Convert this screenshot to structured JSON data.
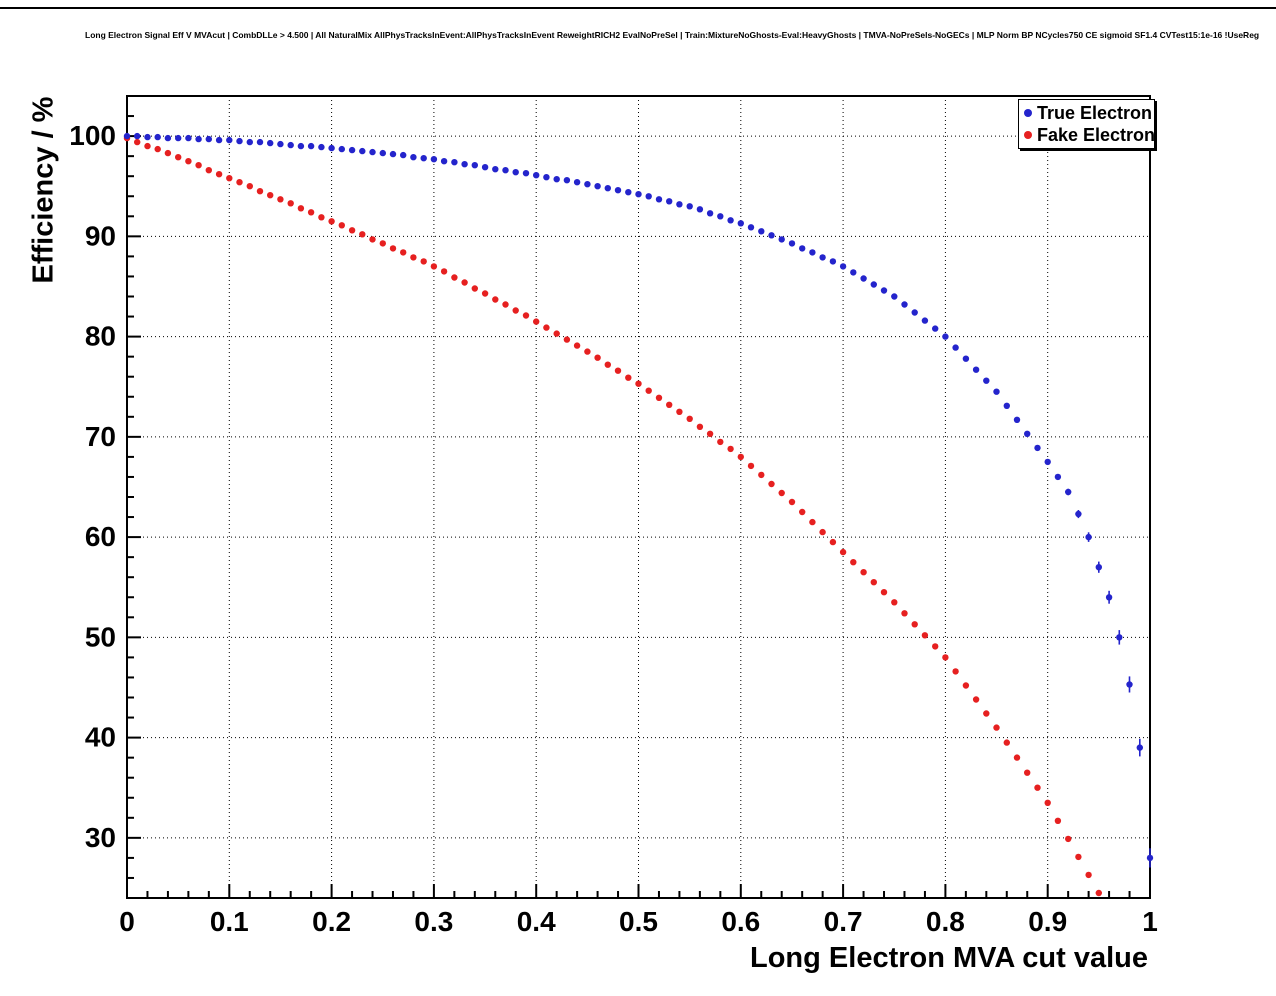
{
  "chart_data": {
    "type": "scatter",
    "title": "Long Electron Signal Eff V MVAcut | CombDLLe > 4.500 | All NaturalMix AllPhysTracksInEvent:AllPhysTracksInEvent ReweightRICH2 EvalNoPreSel | Train:MixtureNoGhosts-Eval:HeavyGhosts | TMVA-NoPreSels-NoGECs | MLP Norm BP NCycles750 CE sigmoid SF1.4 CVTest15:1e-16 !UseReg",
    "xlabel": "Long Electron MVA cut value",
    "ylabel": "Efficiency / %",
    "xlim": [
      0,
      1
    ],
    "ylim": [
      24,
      104
    ],
    "x_ticks": [
      0,
      0.1,
      0.2,
      0.3,
      0.4,
      0.5,
      0.6,
      0.7,
      0.8,
      0.9,
      1
    ],
    "x_tick_labels": [
      "0",
      "0.1",
      "0.2",
      "0.3",
      "0.4",
      "0.5",
      "0.6",
      "0.7",
      "0.8",
      "0.9",
      "1"
    ],
    "y_ticks": [
      30,
      40,
      50,
      60,
      70,
      80,
      90,
      100
    ],
    "y_tick_labels": [
      "30",
      "40",
      "50",
      "60",
      "70",
      "80",
      "90",
      "100"
    ],
    "x_minor_step": 0.02,
    "y_minor_step": 2,
    "grid": "dotted",
    "frame_color": "#000000",
    "legend_position": "top-right",
    "series": [
      {
        "name": "Fake Electron",
        "color": "#e62020",
        "marker": "circle",
        "x_start": 0,
        "x_step": 0.01,
        "err_base": 0.15,
        "err_tail_start": 0.88,
        "err_tail_slope": 4,
        "values": [
          99.8,
          99.4,
          99.0,
          98.7,
          98.3,
          97.9,
          97.5,
          97.1,
          96.6,
          96.2,
          95.8,
          95.4,
          95.0,
          94.5,
          94.1,
          93.7,
          93.3,
          92.8,
          92.4,
          91.9,
          91.5,
          91.1,
          90.6,
          90.2,
          89.7,
          89.3,
          88.8,
          88.4,
          87.9,
          87.5,
          87.0,
          86.5,
          85.9,
          85.4,
          84.8,
          84.3,
          83.7,
          83.2,
          82.6,
          82.1,
          81.5,
          80.9,
          80.3,
          79.7,
          79.1,
          78.5,
          77.9,
          77.2,
          76.6,
          75.9,
          75.3,
          74.6,
          73.9,
          73.2,
          72.5,
          71.8,
          71.0,
          70.3,
          69.5,
          68.8,
          68.0,
          67.1,
          66.2,
          65.3,
          64.4,
          63.5,
          62.5,
          61.5,
          60.5,
          59.5,
          58.5,
          57.5,
          56.5,
          55.5,
          54.5,
          53.5,
          52.4,
          51.3,
          50.2,
          49.1,
          48.0,
          46.6,
          45.2,
          43.8,
          42.4,
          41.0,
          39.5,
          38.0,
          36.5,
          35.0,
          33.5,
          31.7,
          29.9,
          28.1,
          26.3,
          24.5
        ]
      },
      {
        "name": "True Electron",
        "color": "#2424cc",
        "marker": "circle",
        "x_start": 0,
        "x_step": 0.01,
        "err_base": 0.15,
        "err_tail_start": 0.88,
        "err_tail_slope": 8,
        "values": [
          100,
          100,
          99.9,
          99.9,
          99.8,
          99.8,
          99.8,
          99.7,
          99.7,
          99.6,
          99.6,
          99.5,
          99.4,
          99.4,
          99.3,
          99.2,
          99.1,
          99.0,
          99.0,
          98.9,
          98.8,
          98.7,
          98.6,
          98.5,
          98.4,
          98.3,
          98.2,
          98.1,
          97.9,
          97.8,
          97.7,
          97.5,
          97.4,
          97.2,
          97.1,
          96.9,
          96.7,
          96.6,
          96.4,
          96.3,
          96.1,
          95.9,
          95.7,
          95.6,
          95.4,
          95.2,
          95.0,
          94.8,
          94.6,
          94.4,
          94.2,
          94.0,
          93.7,
          93.5,
          93.2,
          93.0,
          92.7,
          92.3,
          92.0,
          91.6,
          91.3,
          90.9,
          90.5,
          90.1,
          89.7,
          89.3,
          88.8,
          88.4,
          87.9,
          87.5,
          87.0,
          86.4,
          85.8,
          85.2,
          84.6,
          84.0,
          83.2,
          82.4,
          81.6,
          80.8,
          80.0,
          78.9,
          77.8,
          76.7,
          75.6,
          74.5,
          73.1,
          71.7,
          70.3,
          68.9,
          67.5,
          66.0,
          64.5,
          62.3,
          60.0,
          57.0,
          54.0,
          50.0,
          45.3,
          39.0,
          28.0
        ]
      }
    ],
    "legend_entries": {
      "first": "True Electron",
      "second": "Fake Electron"
    }
  }
}
